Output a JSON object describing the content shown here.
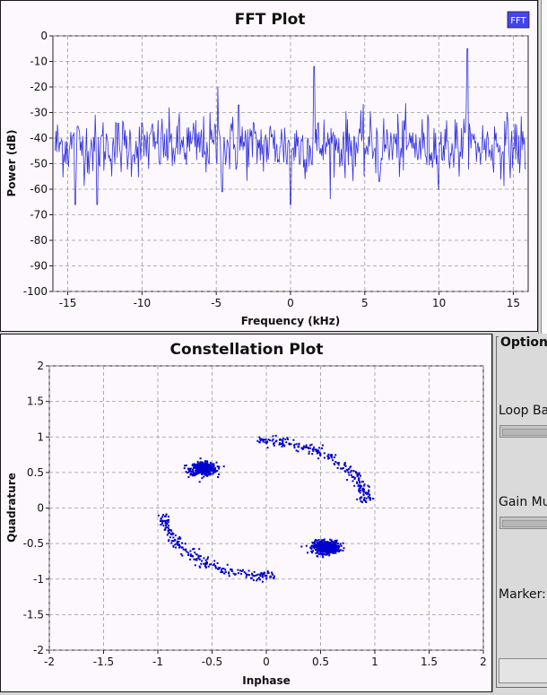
{
  "fft": {
    "title": "FFT Plot",
    "legend_label": "FFT",
    "xlabel": "Frequency (kHz)",
    "ylabel": "Power (dB)",
    "series_color": "#3333dd"
  },
  "constellation": {
    "title": "Constellation Plot",
    "xlabel": "Inphase",
    "ylabel": "Quadrature",
    "point_color": "#0000cc"
  },
  "options": {
    "title": "Option",
    "loop_bandwidth_label": "Loop Ba",
    "gain_label": "Gain Mu",
    "marker_label": "Marker:"
  },
  "chart_data": [
    {
      "type": "line",
      "title": "FFT Plot",
      "xlabel": "Frequency (kHz)",
      "ylabel": "Power (dB)",
      "xlim": [
        -16,
        16
      ],
      "ylim": [
        -100,
        0
      ],
      "xticks": [
        "-15",
        "-10",
        "-5",
        "0",
        "5",
        "10",
        "15"
      ],
      "yticks": [
        "0",
        "-10",
        "-20",
        "-30",
        "-40",
        "-50",
        "-60",
        "-70",
        "-80",
        "-90",
        "-100"
      ],
      "grid": true,
      "legend": [
        "FFT"
      ],
      "legend_placement": "top-right",
      "noise_floor_db": -43,
      "peaks": [
        {
          "x": -14.5,
          "y": -66
        },
        {
          "x": -13.0,
          "y": -66
        },
        {
          "x": -4.9,
          "y": -20
        },
        {
          "x": -4.6,
          "y": -61
        },
        {
          "x": -3.5,
          "y": -27
        },
        {
          "x": 0.0,
          "y": -66
        },
        {
          "x": 1.6,
          "y": -12
        },
        {
          "x": 6.0,
          "y": -57
        },
        {
          "x": 11.9,
          "y": -5
        },
        {
          "x": 15.8,
          "y": -52
        }
      ]
    },
    {
      "type": "scatter",
      "title": "Constellation Plot",
      "xlabel": "Inphase",
      "ylabel": "Quadrature",
      "xlim": [
        -2,
        2
      ],
      "ylim": [
        -2,
        2
      ],
      "xticks": [
        "-2",
        "-1.5",
        "-1",
        "-0.5",
        "0",
        "0.5",
        "1",
        "1.5",
        "2"
      ],
      "yticks": [
        "2",
        "1.5",
        "1",
        "0.5",
        "0",
        "-0.5",
        "-1",
        "-1.5",
        "-2"
      ],
      "grid": true,
      "clusters": [
        {
          "x": -0.58,
          "y": 0.55,
          "count": 450
        },
        {
          "x": 0.55,
          "y": -0.55,
          "count": 450
        }
      ],
      "arcs": [
        {
          "radius": 0.93,
          "from_deg": 5,
          "to_deg": 95,
          "count": 230
        },
        {
          "radius": 0.95,
          "from_deg": 185,
          "to_deg": 275,
          "count": 230
        }
      ]
    }
  ]
}
